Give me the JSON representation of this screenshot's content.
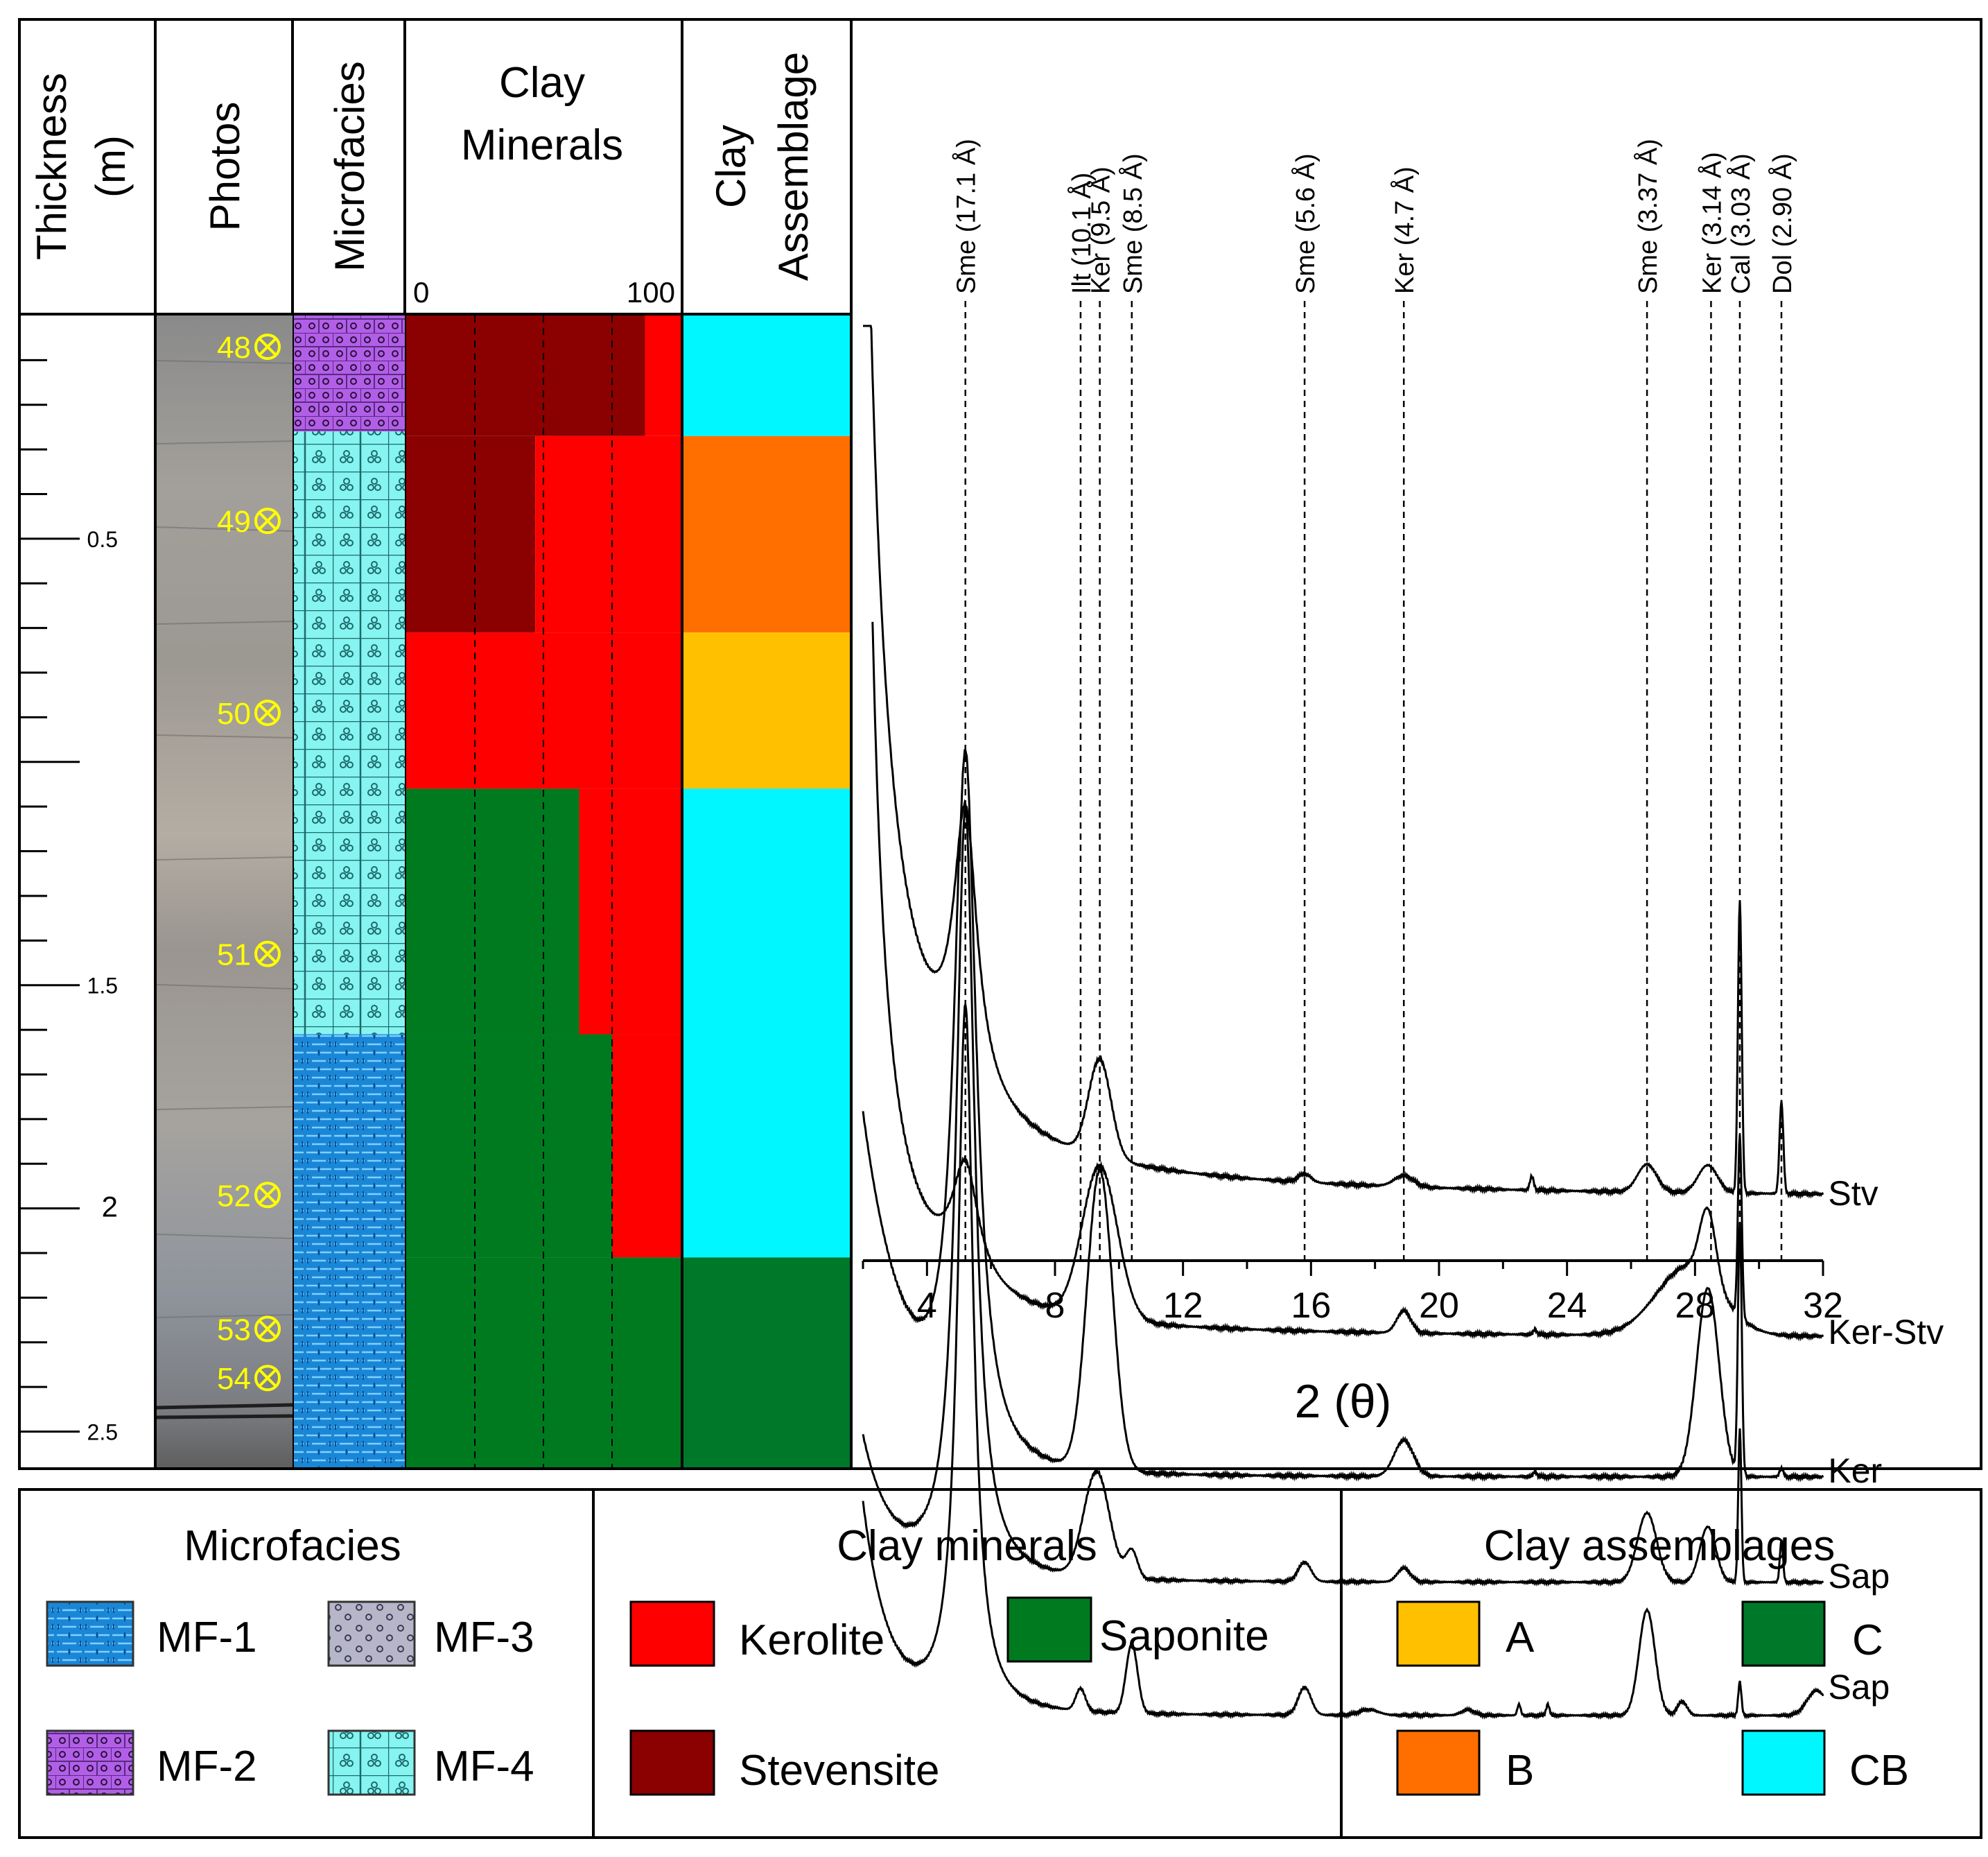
{
  "columns": {
    "thickness": {
      "line1": "Thickness",
      "line2": "(m)"
    },
    "photos": "Photos",
    "microfacies": "Microfacies",
    "clay_minerals": {
      "line1": "Clay",
      "line2": "Minerals",
      "axis_min": "0",
      "axis_max": "100"
    },
    "clay_assemblage": {
      "line1": "Clay",
      "line2": "Assemblage"
    }
  },
  "colors": {
    "kerolite": "#ff0000",
    "stevensite": "#8b0000",
    "saponite": "#007a1f",
    "assemblage_A": "#ffc000",
    "assemblage_B": "#ff6f00",
    "assemblage_C": "#00782a",
    "assemblage_CB": "#00f7ff",
    "mf1": "#1a86d6",
    "mf2": "#b25fe8",
    "mf3": "#b6b6c8",
    "mf4": "#86f4f0",
    "sample_label": "#ffff00"
  },
  "thickness_ticks": [
    "0.5",
    "1.5",
    "2",
    "2.5"
  ],
  "samples": [
    {
      "id": "48",
      "depth": 0.07
    },
    {
      "id": "49",
      "depth": 0.46
    },
    {
      "id": "50",
      "depth": 0.89
    },
    {
      "id": "51",
      "depth": 1.43
    },
    {
      "id": "52",
      "depth": 1.97
    },
    {
      "id": "53",
      "depth": 2.27
    },
    {
      "id": "54",
      "depth": 2.38
    }
  ],
  "microfacies_column": [
    {
      "code": "MF-2",
      "from": 0.0,
      "to": 0.26
    },
    {
      "code": "MF-4",
      "from": 0.26,
      "to": 1.61
    },
    {
      "code": "MF-1",
      "from": 1.61,
      "to": 2.58
    }
  ],
  "clay_minerals_column": [
    {
      "from": 0.0,
      "to": 0.27,
      "stevensite": 87,
      "kerolite": 13,
      "saponite": 0
    },
    {
      "from": 0.27,
      "to": 0.71,
      "stevensite": 47,
      "kerolite": 53,
      "saponite": 0
    },
    {
      "from": 0.71,
      "to": 1.06,
      "stevensite": 0,
      "kerolite": 100,
      "saponite": 0
    },
    {
      "from": 1.06,
      "to": 1.61,
      "stevensite": 0,
      "kerolite": 37,
      "saponite": 63
    },
    {
      "from": 1.61,
      "to": 2.11,
      "stevensite": 0,
      "kerolite": 25,
      "saponite": 75
    },
    {
      "from": 2.11,
      "to": 2.58,
      "stevensite": 0,
      "kerolite": 0,
      "saponite": 100
    }
  ],
  "clay_assemblage_column": [
    {
      "code": "CB",
      "from": 0.0,
      "to": 0.27
    },
    {
      "code": "B",
      "from": 0.27,
      "to": 0.71
    },
    {
      "code": "A",
      "from": 0.71,
      "to": 1.06
    },
    {
      "code": "CB",
      "from": 1.06,
      "to": 2.11
    },
    {
      "code": "C",
      "from": 2.11,
      "to": 2.58
    }
  ],
  "chart_data": {
    "type": "line",
    "title": "",
    "xlabel": "2 (θ)",
    "ylabel": "",
    "xlim": [
      2,
      32
    ],
    "x_ticks": [
      "4",
      "8",
      "12",
      "16",
      "20",
      "24",
      "28",
      "32"
    ],
    "grid": false,
    "peak_lines": [
      {
        "label": "Sme (17.1 Å)",
        "x": 5.2
      },
      {
        "label": "Ilt (10.1 Å)",
        "x": 8.8
      },
      {
        "label": "Ker (9.5 Å)",
        "x": 9.4
      },
      {
        "label": "Sme (8.5 Å)",
        "x": 10.4
      },
      {
        "label": "Sme (5.6 Å)",
        "x": 15.8
      },
      {
        "label": "Ker (4.7 Å)",
        "x": 18.9
      },
      {
        "label": "Sme (3.37 Å)",
        "x": 26.5
      },
      {
        "label": "Ker (3.14 Å)",
        "x": 28.5
      },
      {
        "label": "Cal (3.03 Å)",
        "x": 29.4
      },
      {
        "label": "Dol (2.90 Å)",
        "x": 30.7
      }
    ],
    "series": [
      {
        "name": "Stv",
        "baseline": 0.0,
        "curve": "stv"
      },
      {
        "name": "Ker-Stv",
        "baseline": -0.5,
        "curve": "kerstv"
      },
      {
        "name": "Ker",
        "baseline": -1.0,
        "curve": "ker"
      },
      {
        "name": "Sap",
        "baseline": -1.38,
        "curve": "sap1"
      },
      {
        "name": "Sap",
        "baseline": -1.86,
        "curve": "sap2"
      }
    ]
  },
  "legend": {
    "microfacies": {
      "title": "Microfacies",
      "items": [
        "MF-1",
        "MF-3",
        "MF-2",
        "MF-4"
      ]
    },
    "clay_minerals": {
      "title": "Clay minerals",
      "items": [
        "Kerolite",
        "Saponite",
        "Stevensite"
      ]
    },
    "clay_assemblages": {
      "title": "Clay assemblages",
      "items": [
        "A",
        "C",
        "B",
        "CB"
      ]
    }
  }
}
